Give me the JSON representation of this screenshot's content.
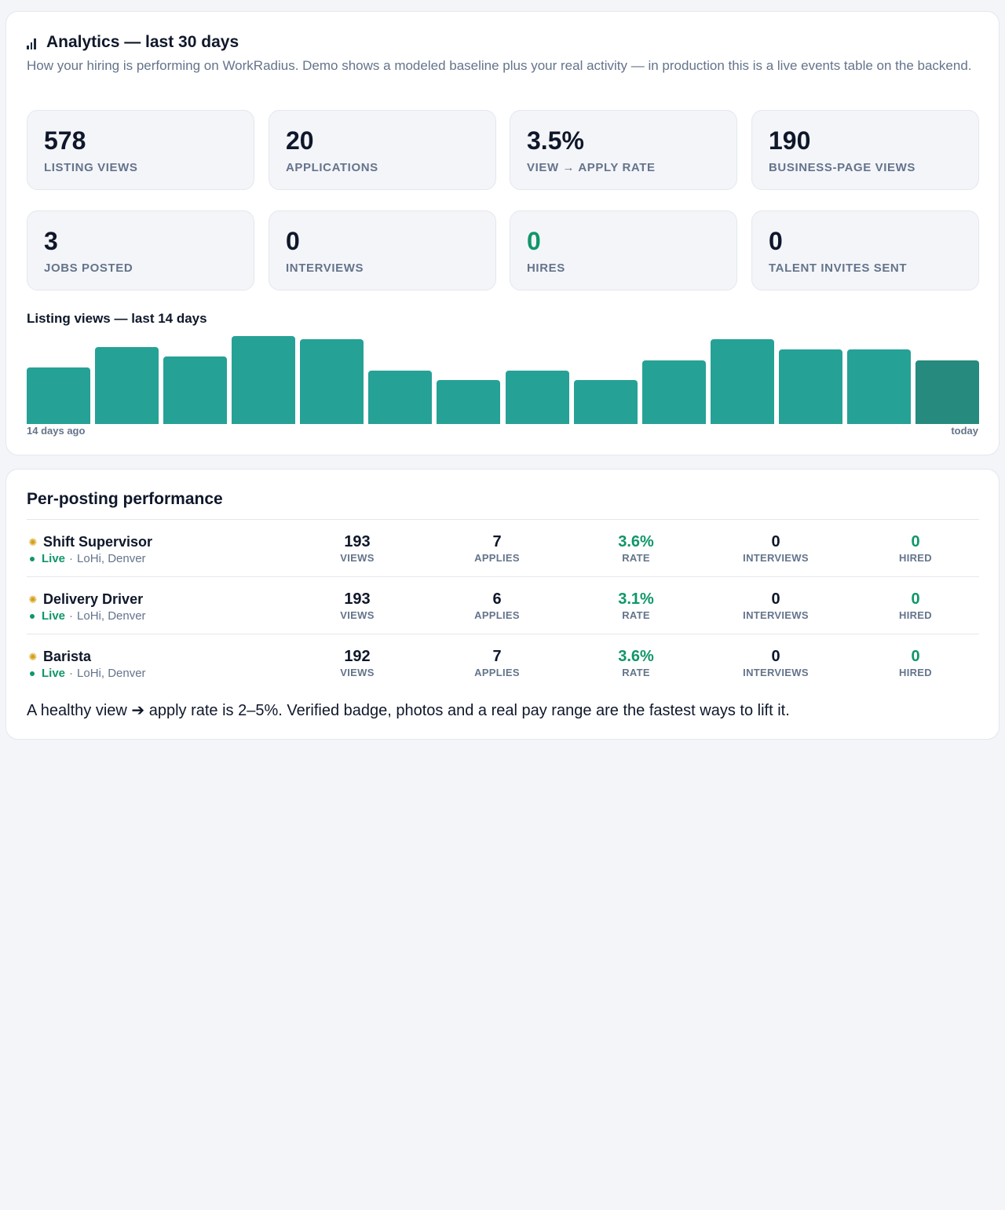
{
  "analytics": {
    "title": "Analytics — last 30 days",
    "icon": "bar-chart-icon",
    "subtitle": "How your hiring is performing on WorkRadius. Demo shows a modeled baseline plus your real activity — in production this is a live events table on the backend.",
    "stats": [
      {
        "value": "578",
        "label": "LISTING VIEWS"
      },
      {
        "value": "20",
        "label": "APPLICATIONS"
      },
      {
        "value": "3.5%",
        "label": "VIEW → APPLY RATE"
      },
      {
        "value": "190",
        "label": "BUSINESS-PAGE VIEWS"
      },
      {
        "value": "3",
        "label": "JOBS POSTED"
      },
      {
        "value": "0",
        "label": "INTERVIEWS"
      },
      {
        "value": "0",
        "label": "HIRES",
        "color": "#109668"
      },
      {
        "value": "0",
        "label": "TALENT INVITES SENT"
      }
    ]
  },
  "chart_data": {
    "type": "bar",
    "title": "Listing views — last 14 days",
    "values": [
      58,
      79,
      69,
      90,
      87,
      55,
      45,
      55,
      45,
      65,
      87,
      77,
      77,
      65
    ],
    "ylim": [
      0,
      90
    ],
    "x_start_label": "14 days ago",
    "x_end_label": "today",
    "colors": {
      "bar": "#26a196",
      "today": "#268a7e"
    }
  },
  "posting": {
    "title": "Per-posting performance",
    "labels": {
      "views": "VIEWS",
      "applies": "APPLIES",
      "rate": "RATE",
      "interviews": "INTERVIEWS",
      "hired": "HIRED"
    },
    "rows": [
      {
        "name": "Shift Supervisor",
        "status": "Live",
        "location": "LoHi, Denver",
        "views": "193",
        "applies": "7",
        "rate": "3.6%",
        "interviews": "0",
        "hired": "0"
      },
      {
        "name": "Delivery Driver",
        "status": "Live",
        "location": "LoHi, Denver",
        "views": "193",
        "applies": "6",
        "rate": "3.1%",
        "interviews": "0",
        "hired": "0"
      },
      {
        "name": "Barista",
        "status": "Live",
        "location": "LoHi, Denver",
        "views": "192",
        "applies": "7",
        "rate": "3.6%",
        "interviews": "0",
        "hired": "0"
      }
    ],
    "note": "A healthy view ➔ apply rate is 2–5%. Verified badge, photos and a real pay range are the fastest ways to lift it."
  }
}
